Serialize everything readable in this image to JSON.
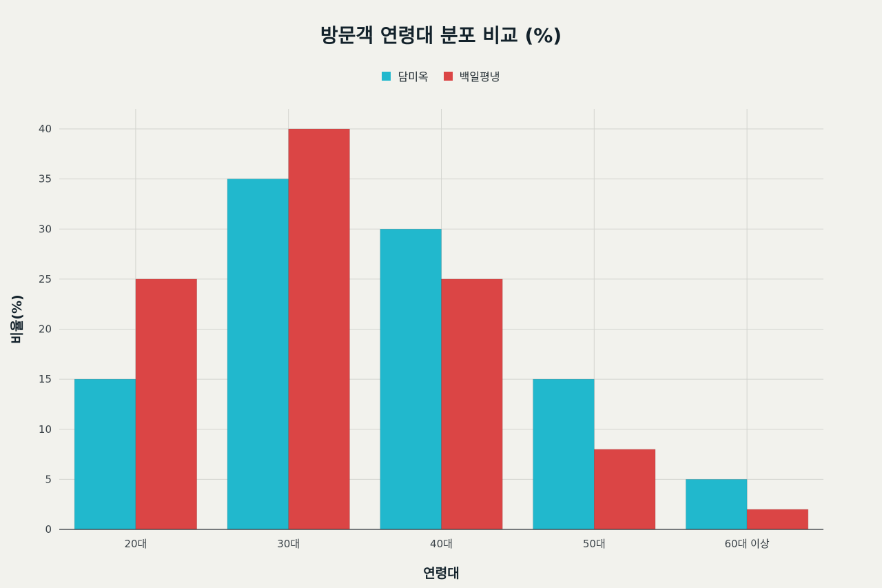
{
  "chart_data": {
    "type": "bar",
    "title": "방문객 연령대 분포 비교 (%)",
    "xlabel": "연령대",
    "ylabel": "비율(%)",
    "categories": [
      "20대",
      "30대",
      "40대",
      "50대",
      "60대 이상"
    ],
    "series": [
      {
        "name": "담미옥",
        "color": "#21b8cd",
        "values": [
          15,
          35,
          30,
          15,
          5
        ]
      },
      {
        "name": "백일평냉",
        "color": "#db4545",
        "values": [
          25,
          40,
          25,
          8,
          2
        ]
      }
    ],
    "ylim": [
      0,
      42
    ],
    "yticks": [
      0,
      5,
      10,
      15,
      20,
      25,
      30,
      35,
      40
    ],
    "grid": true,
    "legend_position": "top-center"
  }
}
